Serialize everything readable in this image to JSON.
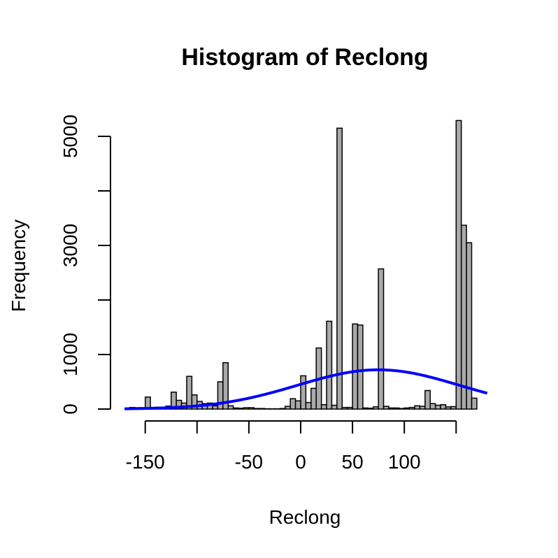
{
  "chart_data": {
    "type": "bar",
    "title": "Histogram of Reclong",
    "xlabel": "Reclong",
    "ylabel": "Frequency",
    "xlim": [
      -165,
      180
    ],
    "ylim": [
      0,
      5200
    ],
    "bin_width": 5,
    "bins": [
      {
        "x0": -165,
        "x1": -160,
        "count": 30
      },
      {
        "x0": -160,
        "x1": -155,
        "count": 25
      },
      {
        "x0": -155,
        "x1": -150,
        "count": 25
      },
      {
        "x0": -150,
        "x1": -145,
        "count": 220
      },
      {
        "x0": -145,
        "x1": -140,
        "count": 30
      },
      {
        "x0": -140,
        "x1": -135,
        "count": 35
      },
      {
        "x0": -135,
        "x1": -130,
        "count": 35
      },
      {
        "x0": -130,
        "x1": -125,
        "count": 55
      },
      {
        "x0": -125,
        "x1": -120,
        "count": 310
      },
      {
        "x0": -120,
        "x1": -115,
        "count": 160
      },
      {
        "x0": -115,
        "x1": -110,
        "count": 110
      },
      {
        "x0": -110,
        "x1": -105,
        "count": 600
      },
      {
        "x0": -105,
        "x1": -100,
        "count": 260
      },
      {
        "x0": -100,
        "x1": -95,
        "count": 140
      },
      {
        "x0": -95,
        "x1": -90,
        "count": 100
      },
      {
        "x0": -90,
        "x1": -85,
        "count": 110
      },
      {
        "x0": -85,
        "x1": -80,
        "count": 60
      },
      {
        "x0": -80,
        "x1": -75,
        "count": 500
      },
      {
        "x0": -75,
        "x1": -70,
        "count": 850
      },
      {
        "x0": -70,
        "x1": -65,
        "count": 60
      },
      {
        "x0": -65,
        "x1": -60,
        "count": 20
      },
      {
        "x0": -60,
        "x1": -55,
        "count": 15
      },
      {
        "x0": -55,
        "x1": -50,
        "count": 25
      },
      {
        "x0": -50,
        "x1": -45,
        "count": 25
      },
      {
        "x0": -45,
        "x1": -40,
        "count": 10
      },
      {
        "x0": -40,
        "x1": -35,
        "count": 10
      },
      {
        "x0": -35,
        "x1": -30,
        "count": 5
      },
      {
        "x0": -30,
        "x1": -25,
        "count": 5
      },
      {
        "x0": -25,
        "x1": -20,
        "count": 5
      },
      {
        "x0": -20,
        "x1": -15,
        "count": 10
      },
      {
        "x0": -15,
        "x1": -10,
        "count": 50
      },
      {
        "x0": -10,
        "x1": -5,
        "count": 190
      },
      {
        "x0": -5,
        "x1": 0,
        "count": 150
      },
      {
        "x0": 0,
        "x1": 5,
        "count": 610
      },
      {
        "x0": 5,
        "x1": 10,
        "count": 120
      },
      {
        "x0": 10,
        "x1": 15,
        "count": 380
      },
      {
        "x0": 15,
        "x1": 20,
        "count": 1120
      },
      {
        "x0": 20,
        "x1": 25,
        "count": 80
      },
      {
        "x0": 25,
        "x1": 30,
        "count": 1610
      },
      {
        "x0": 30,
        "x1": 35,
        "count": 70
      },
      {
        "x0": 35,
        "x1": 40,
        "count": 5150
      },
      {
        "x0": 40,
        "x1": 45,
        "count": 30
      },
      {
        "x0": 45,
        "x1": 50,
        "count": 30
      },
      {
        "x0": 50,
        "x1": 55,
        "count": 1560
      },
      {
        "x0": 55,
        "x1": 60,
        "count": 1540
      },
      {
        "x0": 60,
        "x1": 65,
        "count": 20
      },
      {
        "x0": 65,
        "x1": 70,
        "count": 15
      },
      {
        "x0": 70,
        "x1": 75,
        "count": 40
      },
      {
        "x0": 75,
        "x1": 80,
        "count": 2570
      },
      {
        "x0": 80,
        "x1": 85,
        "count": 50
      },
      {
        "x0": 85,
        "x1": 90,
        "count": 20
      },
      {
        "x0": 90,
        "x1": 95,
        "count": 20
      },
      {
        "x0": 95,
        "x1": 100,
        "count": 10
      },
      {
        "x0": 100,
        "x1": 105,
        "count": 20
      },
      {
        "x0": 105,
        "x1": 110,
        "count": 30
      },
      {
        "x0": 110,
        "x1": 115,
        "count": 60
      },
      {
        "x0": 115,
        "x1": 120,
        "count": 50
      },
      {
        "x0": 120,
        "x1": 125,
        "count": 340
      },
      {
        "x0": 125,
        "x1": 130,
        "count": 100
      },
      {
        "x0": 130,
        "x1": 135,
        "count": 70
      },
      {
        "x0": 135,
        "x1": 140,
        "count": 80
      },
      {
        "x0": 140,
        "x1": 145,
        "count": 40
      },
      {
        "x0": 145,
        "x1": 150,
        "count": 45
      },
      {
        "x0": 150,
        "x1": 155,
        "count": 5290
      },
      {
        "x0": 155,
        "x1": 160,
        "count": 3370
      },
      {
        "x0": 160,
        "x1": 165,
        "count": 3050
      },
      {
        "x0": 165,
        "x1": 170,
        "count": 200
      }
    ],
    "x_ticks": [
      -150,
      -100,
      -50,
      0,
      50,
      100,
      150
    ],
    "x_tick_labels": [
      "-150",
      "",
      "-50",
      "0",
      "50",
      "100",
      ""
    ],
    "y_ticks": [
      0,
      1000,
      2000,
      3000,
      4000,
      5000
    ],
    "y_tick_labels": [
      "0",
      "1000",
      "",
      "3000",
      "",
      "5000"
    ],
    "overlay": {
      "type": "normal-curve",
      "mean": 75,
      "sd": 78,
      "peak": 720,
      "x_range": [
        -170,
        180
      ],
      "color": "#0000ff"
    },
    "bar_fill": "#a9a9a9",
    "grid": false,
    "legend": "none"
  }
}
